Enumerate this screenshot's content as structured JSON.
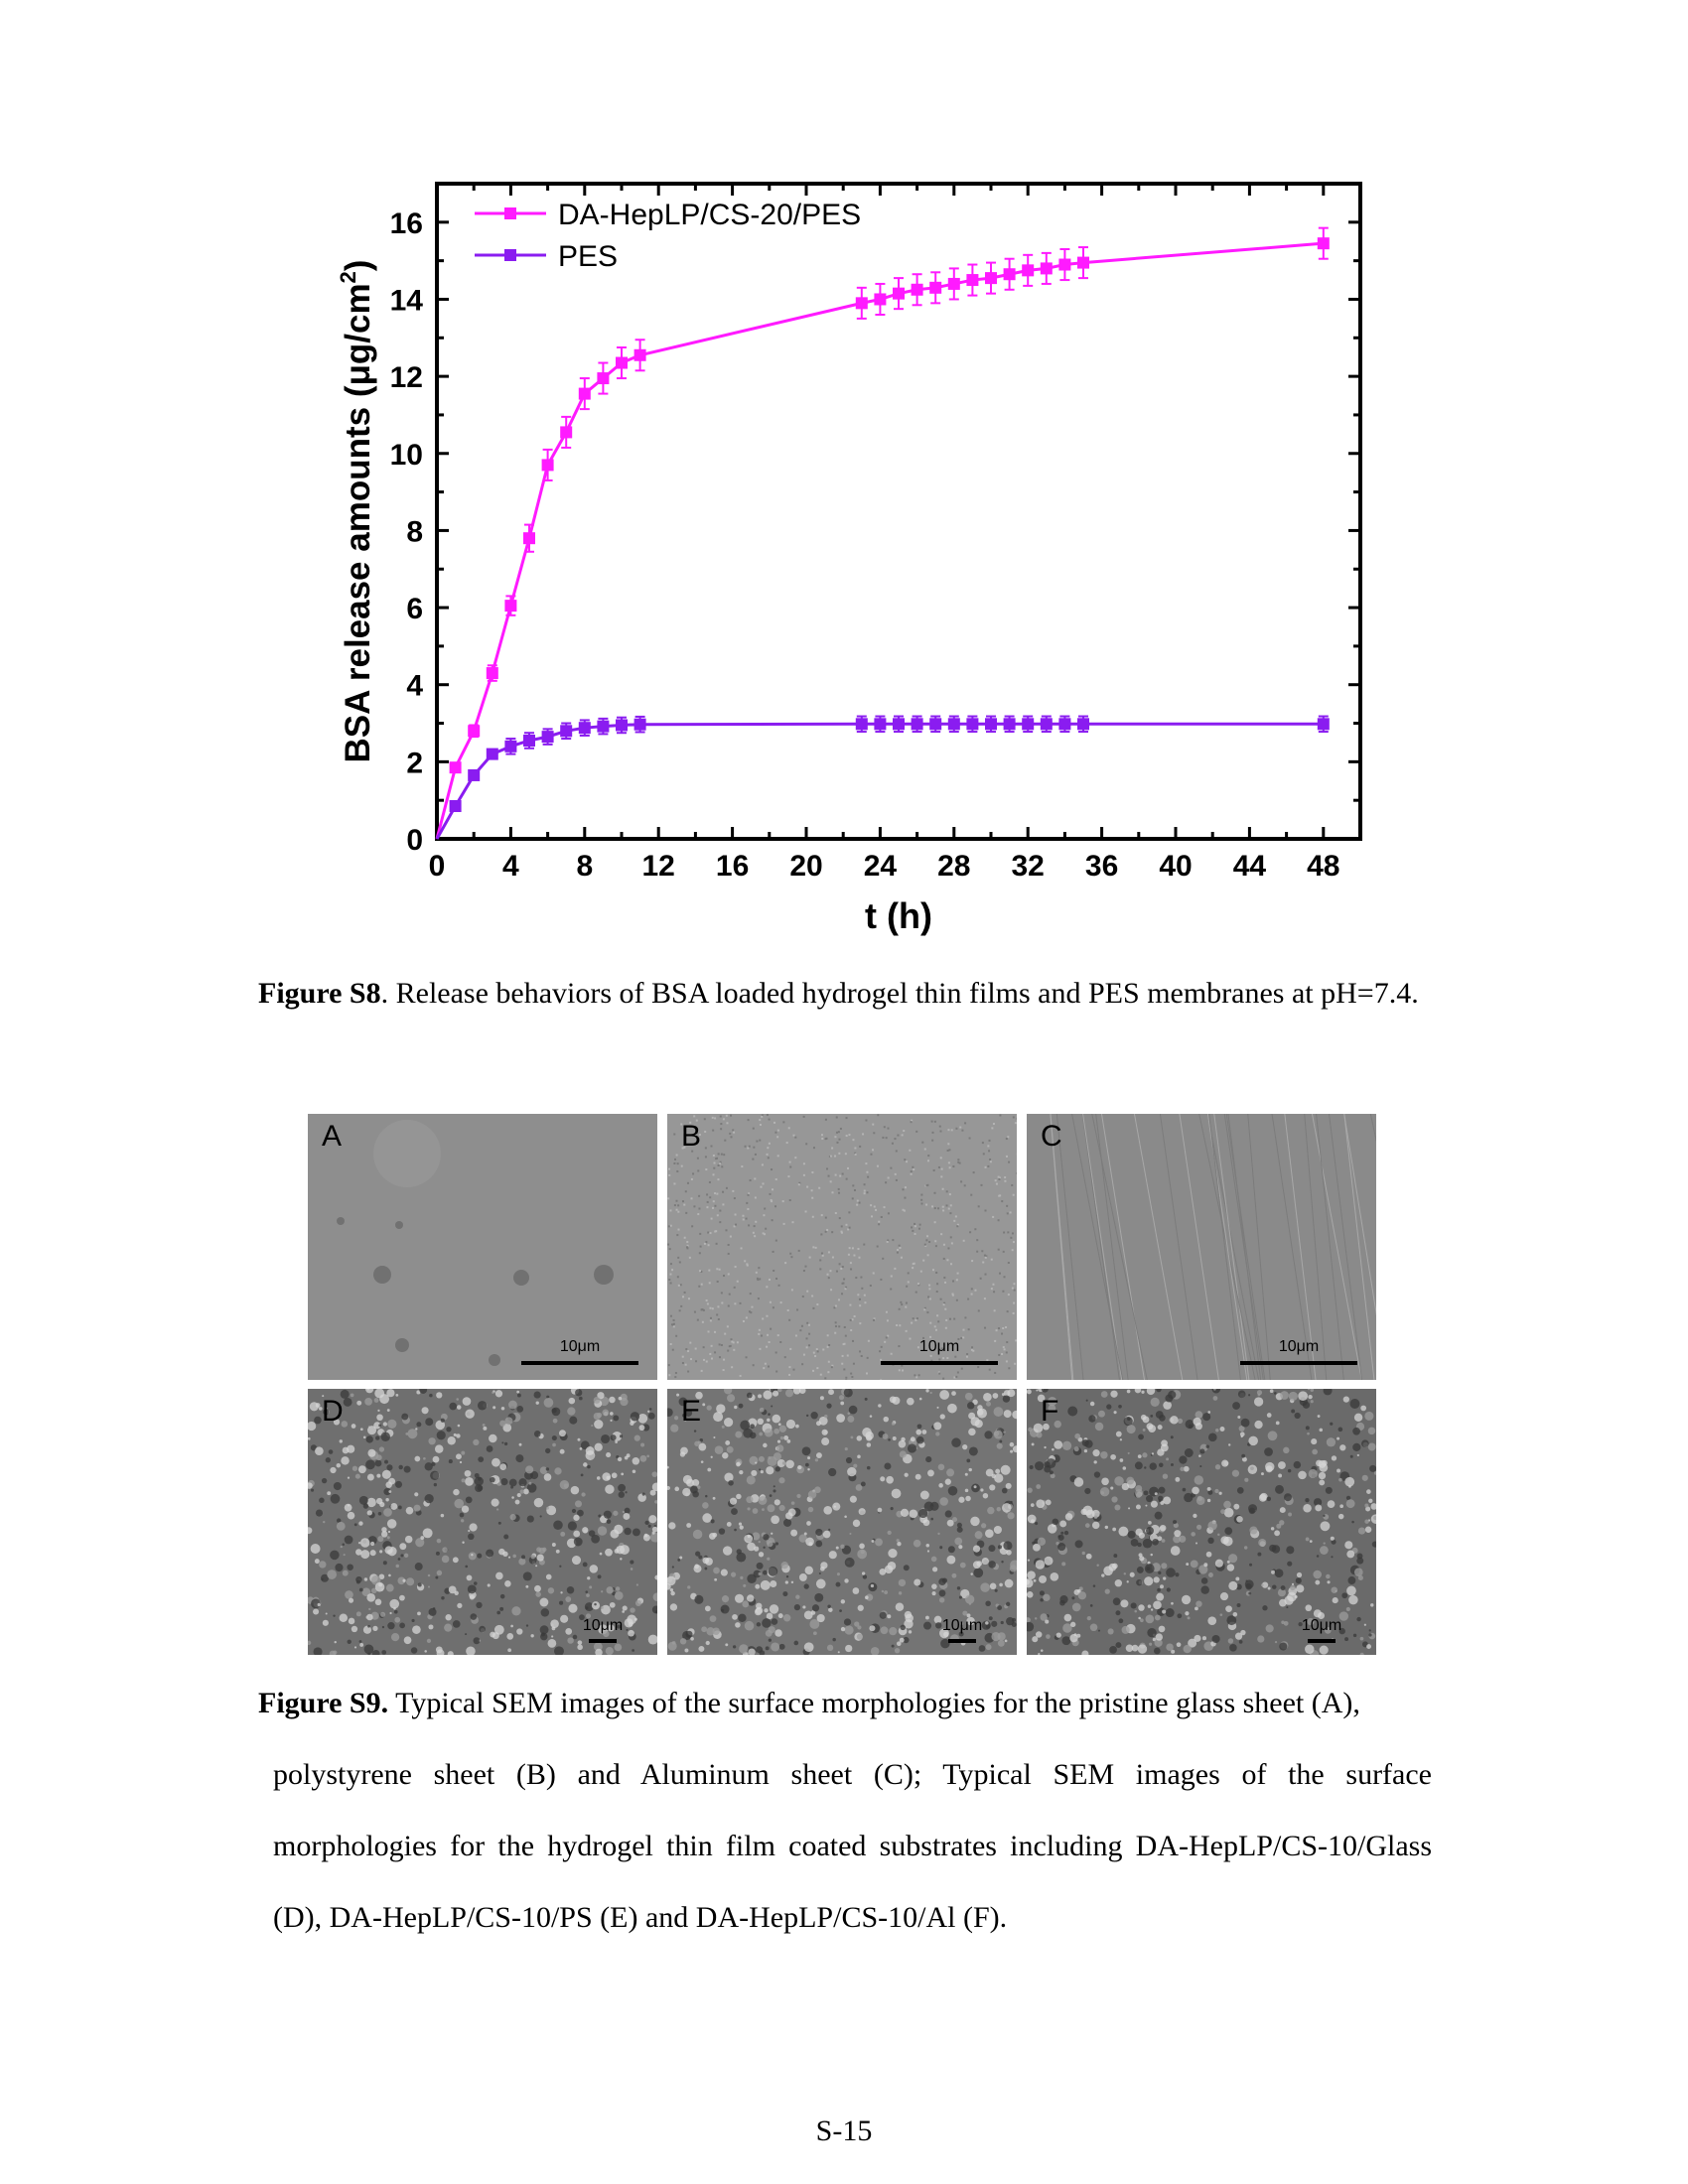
{
  "chart_data": {
    "type": "line",
    "xlabel": "t (h)",
    "ylabel": "BSA release amounts (μg/cm",
    "ylabel_sup": "2",
    "ylabel_close": ")",
    "xlim": [
      0,
      50
    ],
    "ylim": [
      0,
      17
    ],
    "xticks": [
      0,
      4,
      8,
      12,
      16,
      20,
      24,
      28,
      32,
      36,
      40,
      44,
      48
    ],
    "yticks": [
      0,
      2,
      4,
      6,
      8,
      10,
      12,
      14,
      16
    ],
    "grid": false,
    "legend_position": "top-left",
    "series": [
      {
        "name": "DA-HepLP/CS-20/PES",
        "color": "#ff1aff",
        "marker": "square",
        "x": [
          0,
          1,
          2,
          3,
          4,
          5,
          6,
          7,
          8,
          9,
          10,
          11,
          23,
          24,
          25,
          26,
          27,
          28,
          29,
          30,
          31,
          32,
          33,
          34,
          35,
          48
        ],
        "y": [
          0,
          1.85,
          2.8,
          4.3,
          6.05,
          7.8,
          9.7,
          10.55,
          11.55,
          11.95,
          12.35,
          12.55,
          13.9,
          14.0,
          14.15,
          14.25,
          14.3,
          14.4,
          14.5,
          14.55,
          14.65,
          14.75,
          14.8,
          14.9,
          14.95,
          15.45
        ],
        "err": [
          0,
          0.1,
          0.15,
          0.2,
          0.25,
          0.35,
          0.4,
          0.4,
          0.4,
          0.4,
          0.4,
          0.4,
          0.4,
          0.4,
          0.4,
          0.4,
          0.4,
          0.4,
          0.4,
          0.4,
          0.4,
          0.4,
          0.4,
          0.4,
          0.4,
          0.4
        ]
      },
      {
        "name": "PES",
        "color": "#8a1cf0",
        "marker": "square",
        "x": [
          0,
          1,
          2,
          3,
          4,
          5,
          6,
          7,
          8,
          9,
          10,
          11,
          23,
          24,
          25,
          26,
          27,
          28,
          29,
          30,
          31,
          32,
          33,
          34,
          35,
          48
        ],
        "y": [
          0,
          0.85,
          1.65,
          2.2,
          2.4,
          2.55,
          2.65,
          2.8,
          2.88,
          2.92,
          2.95,
          2.97,
          2.98,
          2.98,
          2.98,
          2.98,
          2.98,
          2.98,
          2.98,
          2.98,
          2.98,
          2.98,
          2.98,
          2.98,
          2.98,
          2.98
        ],
        "err": [
          0,
          0.05,
          0.1,
          0.1,
          0.2,
          0.2,
          0.2,
          0.2,
          0.2,
          0.2,
          0.2,
          0.2,
          0.2,
          0.2,
          0.2,
          0.2,
          0.2,
          0.2,
          0.2,
          0.2,
          0.2,
          0.2,
          0.2,
          0.2,
          0.2,
          0.2
        ]
      }
    ]
  },
  "figure_s8": {
    "label": "Figure S8",
    "text": ". Release behaviors of BSA loaded hydrogel thin films and PES membranes at pH=7.4."
  },
  "sem_panels": [
    {
      "letter": "A",
      "scale": "10μm",
      "tone": "#8e8e8e",
      "texture": "smooth"
    },
    {
      "letter": "B",
      "scale": "10μm",
      "tone": "#979797",
      "texture": "grainy"
    },
    {
      "letter": "C",
      "scale": "10μm",
      "tone": "#8a8a8a",
      "texture": "scratched"
    },
    {
      "letter": "D",
      "scale": "10μm",
      "tone": "#6f6f6f",
      "texture": "rough"
    },
    {
      "letter": "E",
      "scale": "10μm",
      "tone": "#747474",
      "texture": "rough"
    },
    {
      "letter": "F",
      "scale": "10μm",
      "tone": "#6a6a6a",
      "texture": "rough"
    }
  ],
  "figure_s9": {
    "label": "Figure S9.",
    "text_first": " Typical SEM images of the surface morphologies for the pristine glass sheet (A),",
    "text_rest": "polystyrene sheet (B) and Aluminum sheet (C); Typical SEM images of the surface morphologies for the hydrogel thin film coated substrates including DA-HepLP/CS-10/Glass (D), DA-HepLP/CS-10/PS (E) and DA-HepLP/CS-10/Al (F)."
  },
  "page_number": "S-15"
}
